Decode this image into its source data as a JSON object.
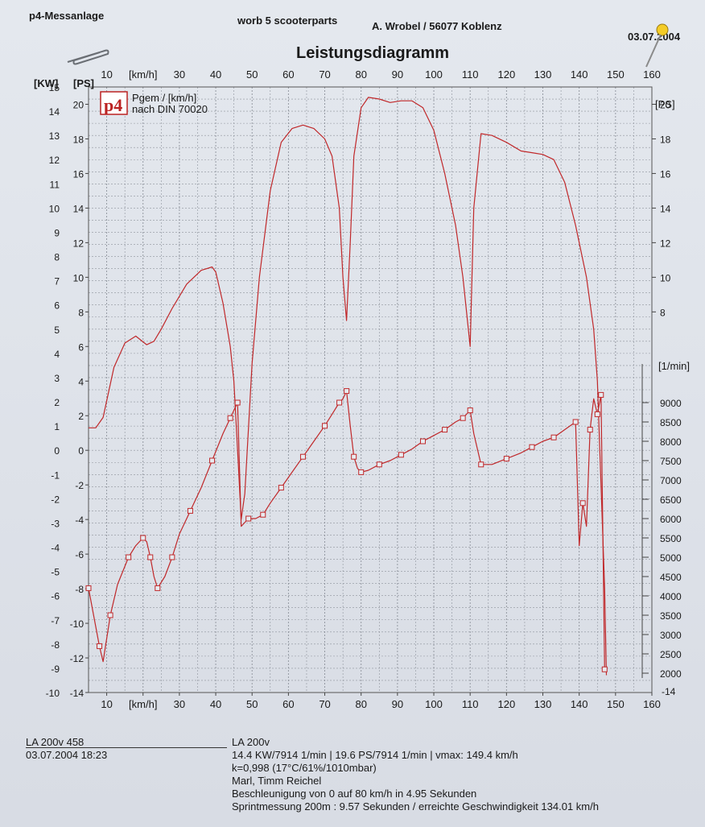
{
  "header": {
    "left": "p4-Messanlage",
    "center": "worb 5 scooterparts",
    "right": "A. Wrobel / 56077 Koblenz",
    "date": "03.07.2004"
  },
  "chart_data": {
    "type": "line",
    "title": "Leistungsdiagramm",
    "logo_text": "p4",
    "legend": [
      "Pgem / [km/h]",
      "nach DIN 70020"
    ],
    "xlabel": "[km/h]",
    "xlim": [
      5,
      160
    ],
    "x_ticks": [
      10,
      20,
      30,
      40,
      50,
      60,
      70,
      80,
      90,
      100,
      110,
      120,
      130,
      140,
      150,
      160
    ],
    "x_tick_labels": [
      "10",
      "[km/h]",
      "30",
      "40",
      "50",
      "60",
      "70",
      "80",
      "90",
      "100",
      "110",
      "120",
      "130",
      "140",
      "150",
      "160"
    ],
    "axes": {
      "kw": {
        "label": "[KW]",
        "ylim": [
          -10,
          15
        ],
        "ticks": [
          -10,
          -9,
          -8,
          -7,
          -6,
          -5,
          -4,
          -3,
          -2,
          -1,
          0,
          1,
          2,
          3,
          4,
          5,
          6,
          7,
          8,
          9,
          10,
          11,
          12,
          13,
          14,
          15
        ]
      },
      "ps": {
        "label": "[PS]",
        "ylim": [
          -14,
          21
        ],
        "ticks": [
          -14,
          -12,
          -10,
          -8,
          -6,
          -4,
          -2,
          0,
          2,
          4,
          6,
          8,
          10,
          12,
          14,
          16,
          18,
          20
        ]
      },
      "rpm": {
        "label": "[1/min]",
        "ylim": [
          1500,
          10000
        ],
        "ticks": [
          2000,
          2500,
          3000,
          3500,
          4000,
          4500,
          5000,
          5500,
          6000,
          6500,
          7000,
          7500,
          8000,
          8500,
          9000
        ]
      }
    },
    "grid": true,
    "series": [
      {
        "axis": "ps",
        "marker": "none",
        "x": [
          5,
          7,
          9,
          12,
          15,
          18,
          21,
          23,
          25,
          28,
          32,
          36,
          39,
          40,
          42,
          44,
          45,
          46,
          47,
          48,
          50,
          52,
          55,
          58,
          61,
          64,
          67,
          70,
          72,
          74,
          75,
          76,
          77,
          78,
          80,
          82,
          85,
          88,
          91,
          94,
          97,
          100,
          103,
          106,
          108,
          109,
          110,
          111,
          113,
          116,
          120,
          124,
          127,
          130,
          133,
          136,
          139,
          142,
          144,
          145,
          146,
          147,
          147.5
        ],
        "values": [
          1.3,
          1.3,
          1.9,
          4.8,
          6.2,
          6.6,
          6.1,
          6.3,
          7.0,
          8.2,
          9.6,
          10.4,
          10.6,
          10.3,
          8.5,
          6.0,
          4.0,
          0.0,
          -4.0,
          -2.5,
          5.0,
          10.0,
          15.0,
          17.8,
          18.6,
          18.8,
          18.6,
          18.0,
          17.0,
          14.0,
          10.0,
          7.5,
          12.0,
          17.0,
          19.8,
          20.4,
          20.3,
          20.1,
          20.2,
          20.2,
          19.8,
          18.5,
          16.0,
          13.0,
          10.0,
          8.0,
          6.0,
          14.0,
          18.3,
          18.2,
          17.8,
          17.3,
          17.2,
          17.1,
          16.8,
          15.5,
          13.0,
          10.0,
          7.0,
          4.0,
          -2.0,
          -8.0,
          -13.0
        ]
      },
      {
        "axis": "rpm",
        "marker": "square",
        "x": [
          5,
          7,
          8,
          9,
          11,
          13,
          16,
          18,
          20,
          21,
          22,
          23,
          24,
          26,
          28,
          30,
          33,
          36,
          39,
          42,
          44,
          45,
          46,
          47,
          49,
          51,
          53,
          55,
          58,
          61,
          64,
          67,
          70,
          72,
          74,
          75,
          76,
          77,
          78,
          79,
          80,
          82,
          85,
          88,
          91,
          94,
          97,
          100,
          103,
          106,
          108,
          109,
          110,
          111,
          113,
          116,
          120,
          124,
          127,
          130,
          133,
          136,
          139,
          140,
          141,
          142,
          143,
          144,
          145,
          146,
          147
        ],
        "values": [
          4200,
          3200,
          2700,
          2300,
          3500,
          4300,
          5000,
          5300,
          5500,
          5400,
          5000,
          4500,
          4200,
          4500,
          5000,
          5600,
          6200,
          6800,
          7500,
          8200,
          8600,
          8800,
          9000,
          5800,
          6000,
          6000,
          6100,
          6400,
          6800,
          7200,
          7600,
          8000,
          8400,
          8700,
          9000,
          9100,
          9300,
          8400,
          7600,
          7300,
          7200,
          7250,
          7400,
          7500,
          7650,
          7800,
          8000,
          8150,
          8300,
          8500,
          8600,
          8700,
          8800,
          8200,
          7400,
          7400,
          7550,
          7700,
          7850,
          8000,
          8100,
          8300,
          8500,
          5300,
          6400,
          5800,
          8300,
          9100,
          8700,
          9200,
          2100
        ]
      }
    ]
  },
  "footer": {
    "left": {
      "line1": "LA 200v 458",
      "line2": "03.07.2004   18:23"
    },
    "right": {
      "line1": "LA 200v",
      "line2": "14.4 KW/7914 1/min  |  19.6 PS/7914 1/min  |  vmax: 149.4 km/h",
      "line3": "k=0,998 (17°C/61%/1010mbar)",
      "line4": "Marl, Timm Reichel",
      "line5": "Beschleunigung von 0 auf 80 km/h in 4.95 Sekunden",
      "line6": "Sprintmessung 200m : 9.57 Sekunden / erreichte Geschwindigkeit 134.01 km/h"
    }
  }
}
